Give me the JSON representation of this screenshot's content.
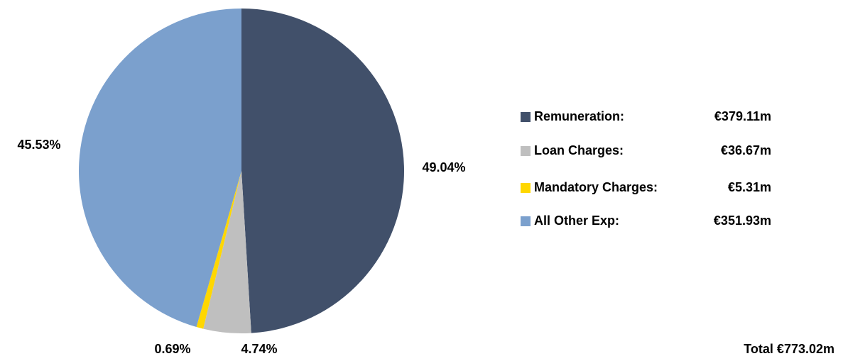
{
  "chart_data": {
    "type": "pie",
    "categories": [
      "Remuneration:",
      "Loan Charges:",
      "Mandatory Charges:",
      "All Other Exp:"
    ],
    "values": [
      49.04,
      4.74,
      0.69,
      45.53
    ],
    "value_labels": [
      "49.04%",
      "4.74%",
      "0.69%",
      "45.53%"
    ],
    "colors": [
      "#41506a",
      "#bfbfbf",
      "#ffd700",
      "#7ba0cd"
    ],
    "legend_amounts": [
      "€379.11m",
      "€36.67m",
      "€5.31m",
      "€351.93m"
    ],
    "total": "Total €773.02m",
    "legend": "right"
  }
}
